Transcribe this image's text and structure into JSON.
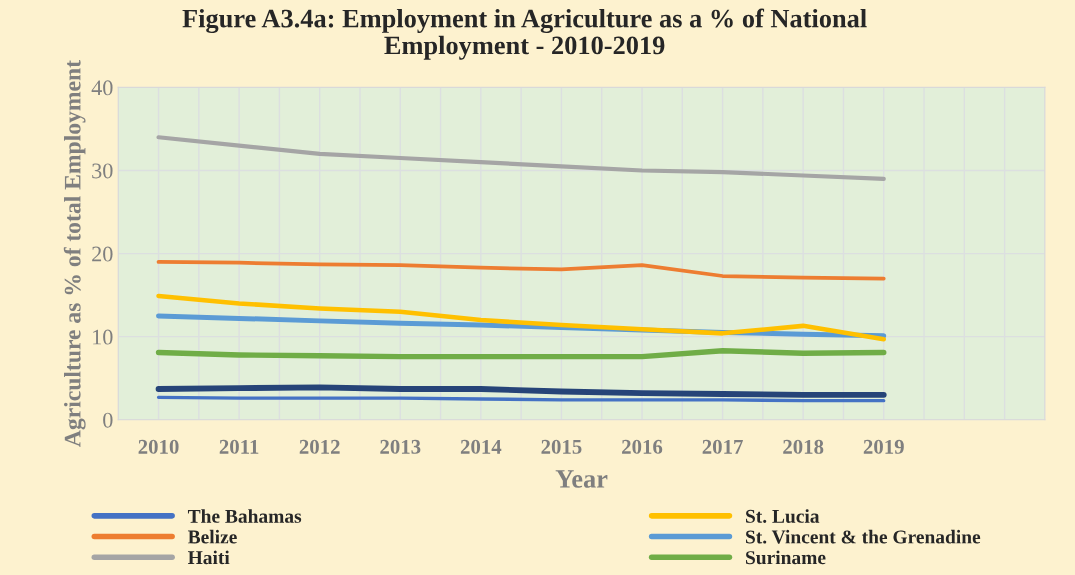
{
  "chart_data": {
    "type": "line",
    "title": "Figure A3.4a: Employment in Agriculture as a % of National\nEmployment - 2010-2019",
    "xlabel": "Year",
    "ylabel": "Agriculture as % of total Employment",
    "categories": [
      "2010",
      "2011",
      "2012",
      "2013",
      "2014",
      "2015",
      "2016",
      "2017",
      "2018",
      "2019",
      null,
      null
    ],
    "series": [
      {
        "name": "The Bahamas",
        "color": "#4472c4",
        "values": [
          2.7,
          2.6,
          2.6,
          2.6,
          2.5,
          2.4,
          2.4,
          2.4,
          2.3,
          2.3,
          null,
          null
        ]
      },
      {
        "name": "Belize",
        "color": "#ed7d31",
        "values": [
          19.0,
          18.9,
          18.7,
          18.6,
          18.3,
          18.1,
          18.6,
          17.3,
          17.1,
          17.0,
          null,
          null
        ]
      },
      {
        "name": "Haiti",
        "color": "#a5a5a5",
        "values": [
          34.0,
          33.0,
          32.0,
          31.5,
          31.0,
          30.5,
          30.0,
          29.8,
          29.4,
          29.0,
          null,
          null
        ]
      },
      {
        "name": "St. Lucia",
        "color": "#ffc000",
        "values": [
          14.9,
          14.0,
          13.4,
          13.0,
          12.0,
          11.4,
          10.9,
          10.4,
          11.3,
          9.7,
          null,
          null
        ]
      },
      {
        "name": "St. Vincent & the Grenadine",
        "color": "#5b9bd5",
        "values": [
          12.5,
          12.2,
          11.9,
          11.6,
          11.4,
          11.1,
          10.8,
          10.5,
          10.3,
          10.1,
          null,
          null
        ]
      },
      {
        "name": "Suriname",
        "color": "#70ad47",
        "values": [
          8.1,
          7.8,
          7.7,
          7.6,
          7.6,
          7.6,
          7.6,
          8.3,
          8.0,
          8.1,
          null,
          null
        ]
      },
      {
        "color": "#264478",
        "values": [
          3.7,
          3.8,
          3.9,
          3.7,
          3.7,
          3.4,
          3.2,
          3.1,
          3.0,
          3.0,
          null,
          null
        ]
      }
    ],
    "ylim": [
      0,
      40
    ],
    "yticks": [
      0,
      10,
      20,
      30,
      40
    ],
    "grid": true,
    "legend": "bottom",
    "marker": "none",
    "line_style": "solid"
  }
}
